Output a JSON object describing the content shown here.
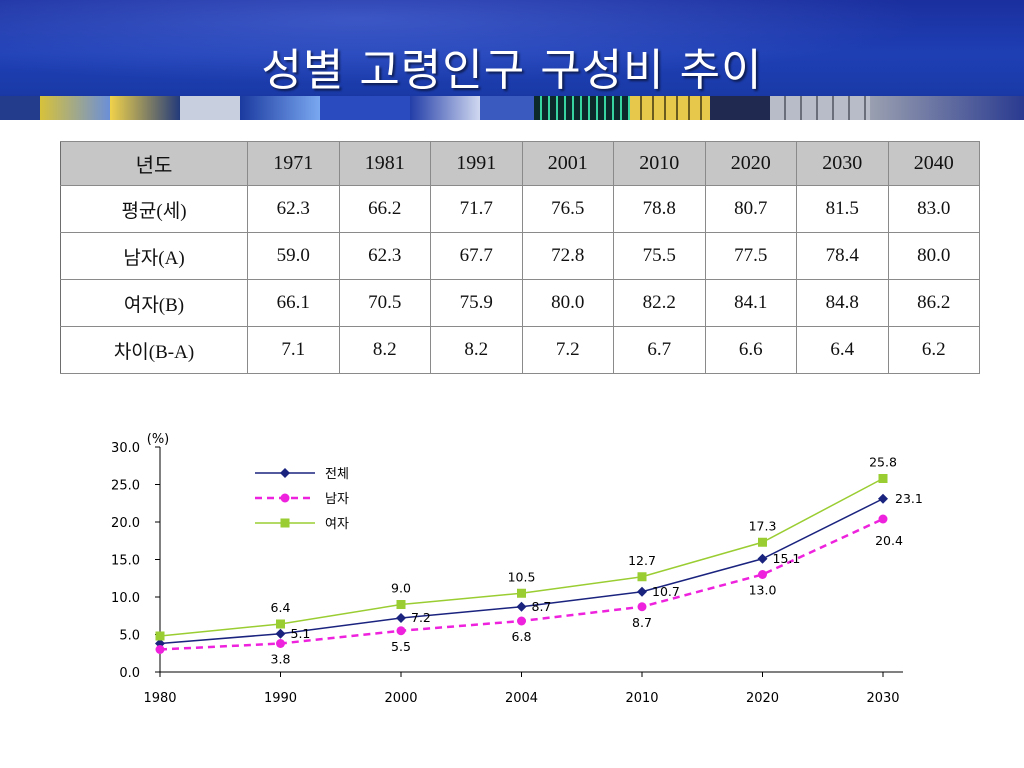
{
  "header": {
    "title": "성별 고령인구 구성비 추이"
  },
  "table": {
    "columns": [
      "년도",
      "1971",
      "1981",
      "1991",
      "2001",
      "2010",
      "2020",
      "2030",
      "2040"
    ],
    "rows": [
      [
        "평균(세)",
        "62.3",
        "66.2",
        "71.7",
        "76.5",
        "78.8",
        "80.7",
        "81.5",
        "83.0"
      ],
      [
        "남자(A)",
        "59.0",
        "62.3",
        "67.7",
        "72.8",
        "75.5",
        "77.5",
        "78.4",
        "80.0"
      ],
      [
        "여자(B)",
        "66.1",
        "70.5",
        "75.9",
        "80.0",
        "82.2",
        "84.1",
        "84.8",
        "86.2"
      ],
      [
        "차이(B-A)",
        "7.1",
        "8.2",
        "8.2",
        "7.2",
        "6.7",
        "6.6",
        "6.4",
        "6.2"
      ]
    ]
  },
  "chart_data": {
    "type": "line",
    "categories": [
      "1980",
      "1990",
      "2000",
      "2004",
      "2010",
      "2020",
      "2030"
    ],
    "unit_label": "(%)",
    "ylim": [
      0,
      30
    ],
    "yticks": [
      "0.0",
      "5.0",
      "10.0",
      "15.0",
      "20.0",
      "25.0",
      "30.0"
    ],
    "grid": false,
    "legend_position": "top-left",
    "series": [
      {
        "name": "전체",
        "color": "#1a237e",
        "marker": "diamond",
        "dash": "solid",
        "values": [
          3.8,
          5.1,
          7.2,
          8.7,
          10.7,
          15.1,
          23.1
        ],
        "labels": [
          "",
          "5.1",
          "7.2",
          "8.7",
          "10.7",
          "15.1",
          "23.1"
        ]
      },
      {
        "name": "남자",
        "color": "#ee22dd",
        "marker": "circle",
        "dash": "dashed",
        "values": [
          3.0,
          3.8,
          5.5,
          6.8,
          8.7,
          13.0,
          20.4
        ],
        "labels": [
          "",
          "3.8",
          "5.5",
          "6.8",
          "8.7",
          "13.0",
          "20.4"
        ]
      },
      {
        "name": "여자",
        "color": "#9acd32",
        "marker": "square",
        "dash": "solid",
        "values": [
          4.8,
          6.4,
          9.0,
          10.5,
          12.7,
          17.3,
          25.8
        ],
        "labels": [
          "",
          "6.4",
          "9.0",
          "10.5",
          "12.7",
          "17.3",
          "25.8"
        ]
      }
    ]
  }
}
